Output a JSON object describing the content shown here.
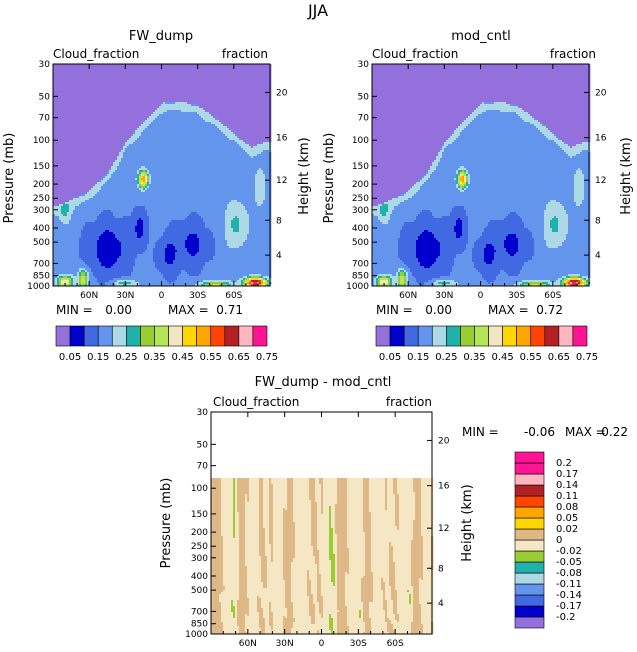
{
  "figure_title": "JJA",
  "chart_data": [
    {
      "type": "heatmap",
      "id": "fw",
      "title": "FW_dump",
      "left_label": "Cloud_fraction",
      "right_label": "fraction",
      "xlabel": "",
      "ylabel": "Pressure (mb)",
      "y2label": "Height (km)",
      "xlim": [
        90,
        -90
      ],
      "xticks": [
        {
          "v": 60,
          "label": "60N"
        },
        {
          "v": 30,
          "label": "30N"
        },
        {
          "v": 0,
          "label": "0"
        },
        {
          "v": -30,
          "label": "30S"
        },
        {
          "v": -60,
          "label": "60S"
        }
      ],
      "ylim_log": [
        1000,
        30
      ],
      "yticks": [
        {
          "v": 30,
          "label": "30"
        },
        {
          "v": 50,
          "label": "50"
        },
        {
          "v": 70,
          "label": "70"
        },
        {
          "v": 100,
          "label": "100"
        },
        {
          "v": 150,
          "label": "150"
        },
        {
          "v": 200,
          "label": "200"
        },
        {
          "v": 250,
          "label": "250"
        },
        {
          "v": 300,
          "label": "300"
        },
        {
          "v": 400,
          "label": "400"
        },
        {
          "v": 500,
          "label": "500"
        },
        {
          "v": 700,
          "label": "700"
        },
        {
          "v": 850,
          "label": "850"
        },
        {
          "v": 1000,
          "label": "1000"
        }
      ],
      "height_ticks": [
        {
          "p": 47,
          "label": "20"
        },
        {
          "p": 96,
          "label": "16"
        },
        {
          "p": 188,
          "label": "12"
        },
        {
          "p": 354,
          "label": "8"
        },
        {
          "p": 614,
          "label": "4"
        }
      ],
      "min_label": "MIN =",
      "min_value": "0.00",
      "max_label": "MAX =",
      "max_value": "0.71",
      "levels": [
        0.05,
        0.15,
        0.25,
        0.35,
        0.45,
        0.55,
        0.65,
        0.75
      ],
      "features": {
        "lat": [
          85,
          60,
          45,
          30,
          15,
          0,
          -15,
          -30,
          -45,
          -60,
          -75,
          -85
        ],
        "cloud_top_p": [
          300,
          240,
          180,
          110,
          80,
          60,
          58,
          62,
          75,
          95,
          120,
          110
        ],
        "blob_lat": 15,
        "blob_p": 185,
        "blob_peak": 0.38
      }
    },
    {
      "type": "heatmap",
      "id": "mod",
      "title": "mod_cntl",
      "left_label": "Cloud_fraction",
      "right_label": "fraction",
      "xlabel": "",
      "ylabel": "Pressure (mb)",
      "y2label": "Height (km)",
      "xlim": [
        90,
        -90
      ],
      "xticks": [
        {
          "v": 60,
          "label": "60N"
        },
        {
          "v": 30,
          "label": "30N"
        },
        {
          "v": 0,
          "label": "0"
        },
        {
          "v": -30,
          "label": "30S"
        },
        {
          "v": -60,
          "label": "60S"
        }
      ],
      "ylim_log": [
        1000,
        30
      ],
      "yticks": [
        {
          "v": 30,
          "label": "30"
        },
        {
          "v": 50,
          "label": "50"
        },
        {
          "v": 70,
          "label": "70"
        },
        {
          "v": 100,
          "label": "100"
        },
        {
          "v": 150,
          "label": "150"
        },
        {
          "v": 200,
          "label": "200"
        },
        {
          "v": 250,
          "label": "250"
        },
        {
          "v": 300,
          "label": "300"
        },
        {
          "v": 400,
          "label": "400"
        },
        {
          "v": 500,
          "label": "500"
        },
        {
          "v": 700,
          "label": "700"
        },
        {
          "v": 850,
          "label": "850"
        },
        {
          "v": 1000,
          "label": "1000"
        }
      ],
      "height_ticks": [
        {
          "p": 47,
          "label": "20"
        },
        {
          "p": 96,
          "label": "16"
        },
        {
          "p": 188,
          "label": "12"
        },
        {
          "p": 354,
          "label": "8"
        },
        {
          "p": 614,
          "label": "4"
        }
      ],
      "min_label": "MIN =",
      "min_value": "0.00",
      "max_label": "MAX =",
      "max_value": "0.72",
      "levels": [
        0.05,
        0.15,
        0.25,
        0.35,
        0.45,
        0.55,
        0.65,
        0.75
      ],
      "features": {
        "lat": [
          85,
          60,
          45,
          30,
          15,
          0,
          -15,
          -30,
          -45,
          -60,
          -75,
          -85
        ],
        "cloud_top_p": [
          300,
          240,
          180,
          110,
          80,
          60,
          58,
          62,
          75,
          95,
          120,
          110
        ],
        "blob_lat": 15,
        "blob_p": 185,
        "blob_peak": 0.38
      }
    },
    {
      "type": "heatmap",
      "id": "diff",
      "title": "FW_dump - mod_cntl",
      "left_label": "Cloud_fraction",
      "right_label": "fraction",
      "xlabel": "",
      "ylabel": "Pressure (mb)",
      "y2label": "Height (km)",
      "xlim": [
        90,
        -90
      ],
      "xticks": [
        {
          "v": 60,
          "label": "60N"
        },
        {
          "v": 30,
          "label": "30N"
        },
        {
          "v": 0,
          "label": "0"
        },
        {
          "v": -30,
          "label": "30S"
        },
        {
          "v": -60,
          "label": "60S"
        }
      ],
      "ylim_log": [
        1000,
        30
      ],
      "yticks": [
        {
          "v": 30,
          "label": "30"
        },
        {
          "v": 50,
          "label": "50"
        },
        {
          "v": 70,
          "label": "70"
        },
        {
          "v": 100,
          "label": "100"
        },
        {
          "v": 150,
          "label": "150"
        },
        {
          "v": 200,
          "label": "200"
        },
        {
          "v": 250,
          "label": "250"
        },
        {
          "v": 300,
          "label": "300"
        },
        {
          "v": 400,
          "label": "400"
        },
        {
          "v": 500,
          "label": "500"
        },
        {
          "v": 700,
          "label": "700"
        },
        {
          "v": 850,
          "label": "850"
        },
        {
          "v": 1000,
          "label": "1000"
        }
      ],
      "height_ticks": [
        {
          "p": 47,
          "label": "20"
        },
        {
          "p": 96,
          "label": "16"
        },
        {
          "p": 188,
          "label": "12"
        },
        {
          "p": 354,
          "label": "8"
        },
        {
          "p": 614,
          "label": "4"
        }
      ],
      "min_label": "MIN =",
      "min_value": "-0.06",
      "max_label": "MAX =",
      "max_value": "0.22",
      "levels": [
        -0.2,
        -0.17,
        -0.14,
        -0.11,
        -0.08,
        -0.05,
        -0.02,
        0,
        0.02,
        0.05,
        0.08,
        0.11,
        0.14,
        0.17,
        0.2
      ],
      "level_labels": [
        "-0.2",
        "-0.17",
        "-0.14",
        "-0.11",
        "-0.08",
        "-0.05",
        "-0.02",
        "0",
        "0.02",
        "0.05",
        "0.08",
        "0.11",
        "0.14",
        "0.17",
        "0.2"
      ],
      "features": {
        "region_p_top": 85,
        "green_bands_lat": [
          70,
          45,
          22,
          5,
          -10,
          -32,
          -55,
          -72
        ]
      }
    }
  ],
  "colors": {
    "abs_palette": [
      "#9370db",
      "#0000cd",
      "#4169e1",
      "#6495ed",
      "#add8e6",
      "#20b2aa",
      "#9acd32",
      "#b5e655",
      "#f0e6c2",
      "#ffd700",
      "#ffa500",
      "#ff4500",
      "#b22222",
      "#ffb6c1",
      "#ff1493"
    ],
    "diff_palette": [
      "#9370db",
      "#0000cd",
      "#4169e1",
      "#6495ed",
      "#add8e6",
      "#20b2aa",
      "#9acd32",
      "#f5e6c4",
      "#deb887",
      "#ffd700",
      "#ffa500",
      "#ff4500",
      "#b22222",
      "#ffb6c1",
      "#ff1493",
      "#ff1493"
    ]
  }
}
